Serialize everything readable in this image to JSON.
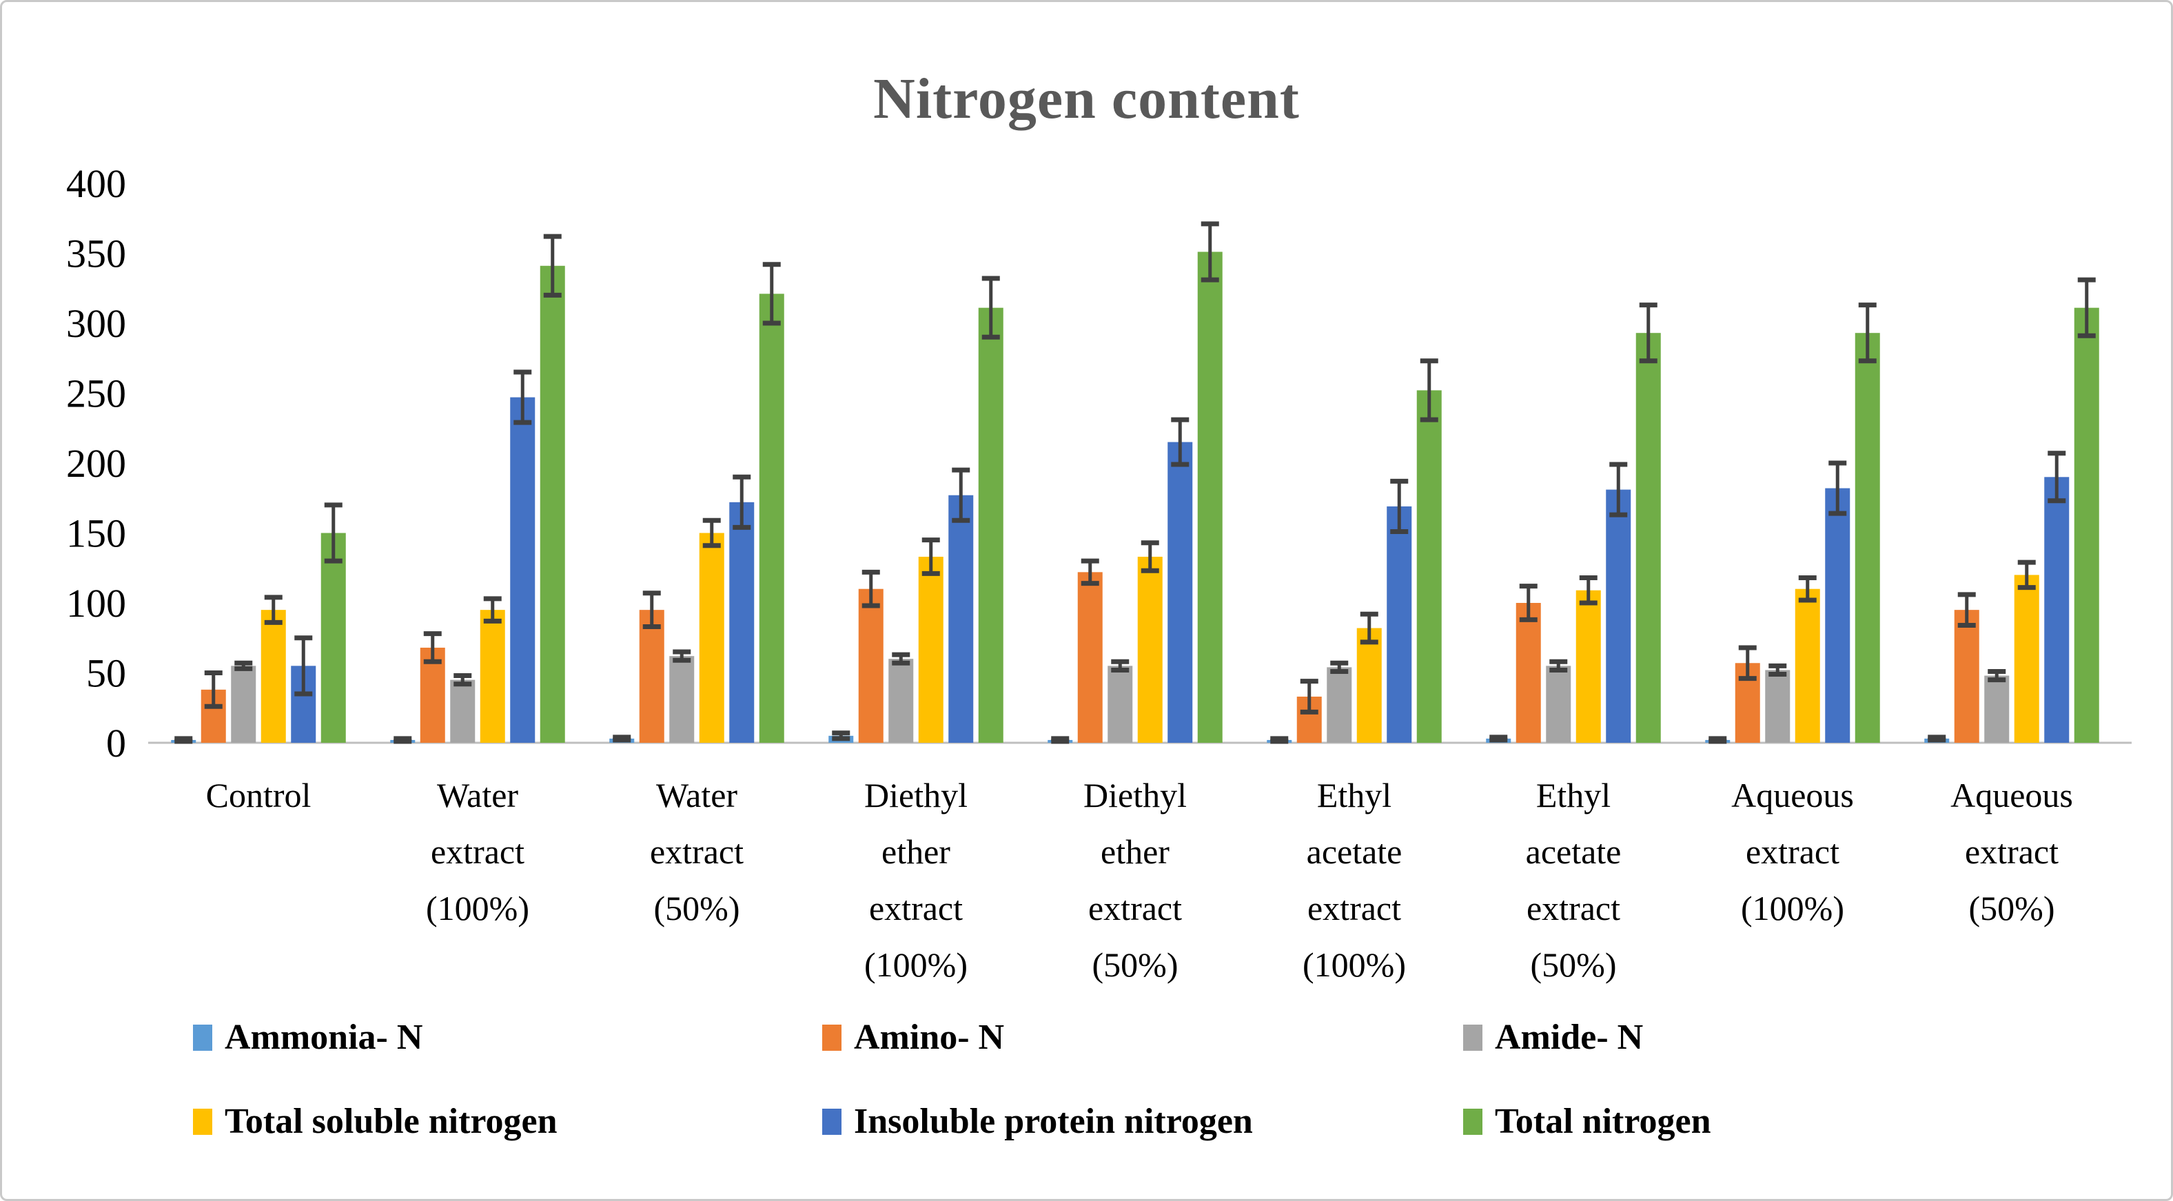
{
  "chart_data": {
    "type": "bar",
    "title": "Nitrogen content",
    "categories": [
      "Control",
      "Water extract (100%)",
      "Water extract (50%)",
      "Diethyl ether extract (100%)",
      "Diethyl ether extract (50%)",
      "Ethyl acetate extract (100%)",
      "Ethyl acetate extract (50%)",
      "Aqueous extract (100%)",
      "Aqueous extract (50%)"
    ],
    "series": [
      {
        "name": "Ammonia- N",
        "color": "#5B9BD5",
        "values": [
          2,
          2,
          3,
          5,
          2,
          2,
          3,
          2,
          3
        ],
        "errors": [
          1,
          1,
          1,
          2,
          1,
          1,
          1,
          1,
          1
        ]
      },
      {
        "name": "Amino- N",
        "color": "#ED7D31",
        "values": [
          38,
          68,
          95,
          110,
          122,
          33,
          100,
          57,
          95
        ],
        "errors": [
          12,
          10,
          12,
          12,
          8,
          11,
          12,
          11,
          11
        ]
      },
      {
        "name": "Amide- N",
        "color": "#A5A5A5",
        "values": [
          55,
          45,
          62,
          60,
          55,
          54,
          55,
          52,
          48
        ],
        "errors": [
          2,
          3,
          3,
          3,
          3,
          3,
          3,
          3,
          3
        ]
      },
      {
        "name": "Total soluble nitrogen",
        "color": "#FFC000",
        "values": [
          95,
          95,
          150,
          133,
          133,
          82,
          109,
          110,
          120
        ],
        "errors": [
          9,
          8,
          9,
          12,
          10,
          10,
          9,
          8,
          9
        ]
      },
      {
        "name": "Insoluble protein nitrogen",
        "color": "#4472C4",
        "values": [
          55,
          247,
          172,
          177,
          215,
          169,
          181,
          182,
          190
        ],
        "errors": [
          20,
          18,
          18,
          18,
          16,
          18,
          18,
          18,
          17
        ]
      },
      {
        "name": "Total nitrogen",
        "color": "#70AD47",
        "values": [
          150,
          341,
          321,
          311,
          351,
          252,
          293,
          293,
          311
        ],
        "errors": [
          20,
          21,
          21,
          21,
          20,
          21,
          20,
          20,
          20
        ]
      }
    ],
    "ylim": [
      0,
      400
    ],
    "ytick_step": 50,
    "yticks": [
      0,
      50,
      100,
      150,
      200,
      250,
      300,
      350,
      400
    ],
    "grid": false,
    "legend_position": "bottom",
    "has_error_bars": true,
    "style": {
      "title_color": "#595959",
      "error_bar_color": "#404040",
      "axis_line_color": "#BFBFBF",
      "label_color": "#000000",
      "frame_border_color": "#C9C9C9",
      "background": "#FFFFFF"
    }
  }
}
